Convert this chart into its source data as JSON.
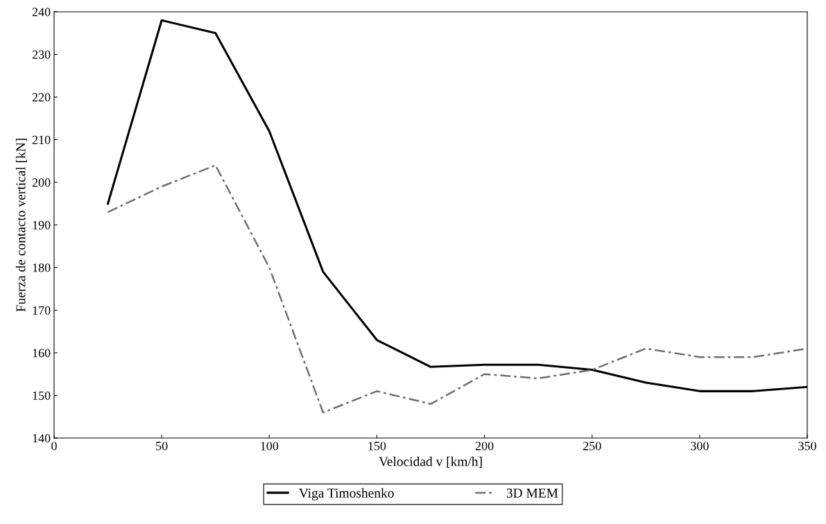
{
  "chart_data": {
    "type": "line",
    "xlabel": "Velocidad v [km/h]",
    "ylabel": "Fuerza de contacto vertical [kN]",
    "x": [
      25,
      50,
      75,
      100,
      125,
      150,
      175,
      200,
      225,
      250,
      275,
      300,
      325,
      350
    ],
    "series": [
      {
        "name": "Viga Timoshenko",
        "color": "#000000",
        "line_style": "solid",
        "values": [
          195,
          238,
          235,
          212,
          179,
          163,
          156.7,
          157.2,
          157.2,
          156,
          153,
          151,
          151,
          152
        ]
      },
      {
        "name": "3D MEM",
        "color": "#6e6e6e",
        "line_style": "dashed",
        "values": [
          193,
          199,
          204,
          180,
          146,
          151,
          148,
          155,
          154,
          156,
          161,
          159,
          159,
          161
        ]
      }
    ],
    "xlim": [
      0,
      350
    ],
    "xticks": [
      0,
      50,
      100,
      150,
      200,
      250,
      300,
      350
    ],
    "ylim": [
      140,
      240
    ],
    "yticks": [
      140,
      150,
      160,
      170,
      180,
      190,
      200,
      210,
      220,
      230,
      240
    ],
    "grid": false,
    "legend": "bottom",
    "marker": "none"
  }
}
